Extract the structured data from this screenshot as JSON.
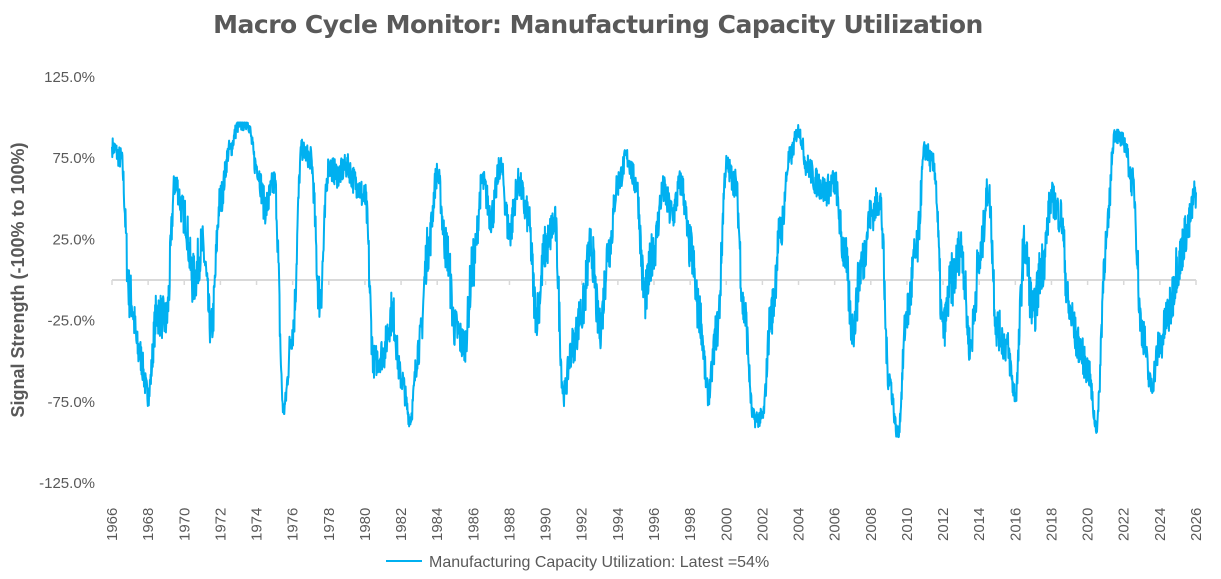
{
  "chart_data": {
    "type": "line",
    "title": "Macro Cycle Monitor: Manufacturing Capacity Utilization",
    "xlabel": "",
    "ylabel": "Signal Strength (-100% to 100%)",
    "ylim": [
      -125,
      125
    ],
    "xlim": [
      1966,
      2026
    ],
    "y_ticks": [
      "125.0%",
      "75.0%",
      "25.0%",
      "-25.0%",
      "-75.0%",
      "-125.0%"
    ],
    "y_tick_values": [
      125,
      75,
      25,
      -25,
      -75,
      -125
    ],
    "x_ticks": [
      "1966",
      "1968",
      "1970",
      "1972",
      "1974",
      "1976",
      "1978",
      "1980",
      "1982",
      "1984",
      "1986",
      "1988",
      "1990",
      "1992",
      "1994",
      "1996",
      "1998",
      "2000",
      "2002",
      "2004",
      "2006",
      "2008",
      "2010",
      "2012",
      "2014",
      "2016",
      "2018",
      "2020",
      "2022",
      "2024",
      "2026"
    ],
    "grid": false,
    "legend_position": "bottom",
    "series": [
      {
        "name": "Manufacturing Capacity Utilization: Latest =54%",
        "color": "#00B0F0",
        "x_start": 1966,
        "x_step": 0.5,
        "values": [
          82,
          75,
          -10,
          -45,
          -70,
          -20,
          -25,
          60,
          40,
          0,
          20,
          -30,
          50,
          80,
          95,
          97,
          70,
          45,
          60,
          -80,
          -30,
          80,
          75,
          -10,
          70,
          65,
          70,
          60,
          50,
          -50,
          -45,
          -20,
          -60,
          -85,
          -40,
          20,
          65,
          20,
          -30,
          -40,
          10,
          60,
          40,
          70,
          30,
          60,
          40,
          -20,
          20,
          35,
          -70,
          -40,
          -20,
          20,
          -30,
          20,
          60,
          75,
          60,
          -10,
          20,
          55,
          40,
          60,
          20,
          -20,
          -70,
          -30,
          70,
          60,
          -20,
          -85,
          -85,
          -20,
          30,
          75,
          92,
          70,
          60,
          55,
          60,
          20,
          -30,
          10,
          40,
          50,
          -60,
          -95,
          -20,
          15,
          80,
          70,
          -30,
          0,
          20,
          -40,
          10,
          55,
          -30,
          -40,
          -70,
          20,
          -20,
          10,
          50,
          40,
          -20,
          -40,
          -55,
          -90,
          20,
          90,
          85,
          60,
          -30,
          -65,
          -40,
          -20,
          10,
          30,
          54
        ]
      }
    ]
  }
}
